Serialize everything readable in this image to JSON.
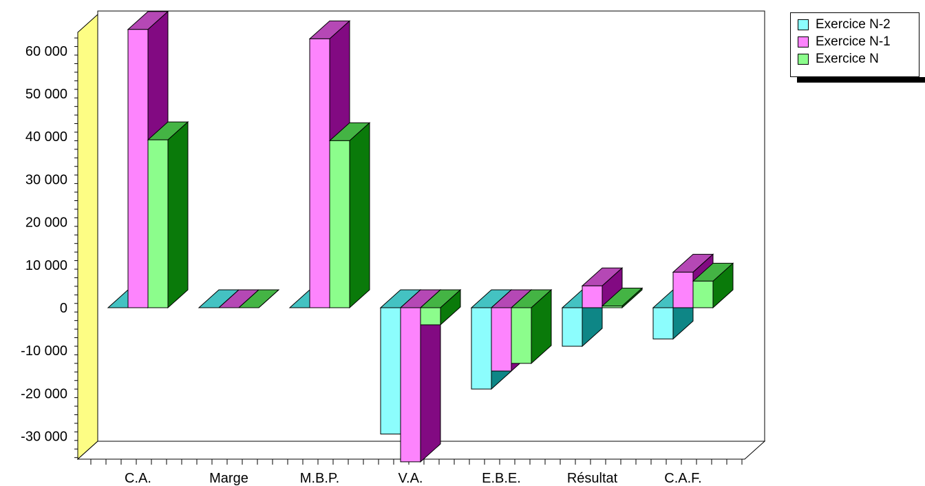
{
  "chart_data": {
    "type": "bar",
    "title": "",
    "xlabel": "",
    "ylabel": "",
    "categories": [
      "C.A.",
      "Marge",
      "M.B.P.",
      "V.A.",
      "E.B.E.",
      "Résultat",
      "C.A.F."
    ],
    "series": [
      {
        "name": "Exercice N-2",
        "values": [
          0,
          0,
          0,
          -29500,
          -19000,
          -9000,
          -7300
        ]
      },
      {
        "name": "Exercice N-1",
        "values": [
          65000,
          0,
          62800,
          -36000,
          -14800,
          5100,
          8300
        ]
      },
      {
        "name": "Exercice N",
        "values": [
          39200,
          0,
          39000,
          -4000,
          -13000,
          400,
          6200
        ]
      }
    ],
    "ylim": [
      -35000,
      65000
    ],
    "y_ticks": [
      "60 000",
      "50 000",
      "40 000",
      "30 000",
      "20 000",
      "10 000",
      "0",
      "-10 000",
      "-20 000",
      "-30 000"
    ],
    "y_tick_values": [
      60000,
      50000,
      40000,
      30000,
      20000,
      10000,
      0,
      -10000,
      -20000,
      -30000
    ],
    "grid": false,
    "legend_position": "top-right",
    "style": "3d",
    "colors": {
      "series": [
        {
          "front": "#8cfdfd",
          "top": "#44c2c2",
          "side": "#0e8686"
        },
        {
          "front": "#fd84fd",
          "top": "#b548b5",
          "side": "#820a82"
        },
        {
          "front": "#8cfd8c",
          "top": "#44b444",
          "side": "#0a7a0a"
        }
      ],
      "wall_side": "#fdfd84",
      "wall_back": "#ffffff",
      "floor": "#ffffff"
    }
  }
}
